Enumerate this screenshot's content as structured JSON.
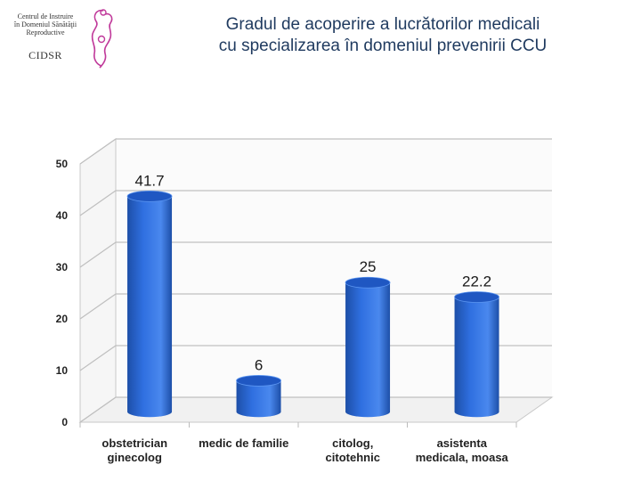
{
  "logo": {
    "lines": [
      "Centrul de Instruire",
      "în Domeniul Sănătăţii",
      "Reproductive"
    ],
    "abbr": "CIDSR"
  },
  "title_lines": [
    "Gradul de acoperire a lucrătorilor medicali",
    "cu specializarea în domeniul prevenirii CCU"
  ],
  "colors": {
    "bar": "#2f6fe0",
    "bar_top": "#1f57c2",
    "bar_dark": "#1d4fa8",
    "title": "#1f3a5f",
    "grid": "#bfbfbf"
  },
  "chart_data": {
    "type": "bar",
    "title": "Gradul de acoperire a lucrătorilor medicali cu specializarea în domeniul prevenirii CCU",
    "categories": [
      [
        "obstetrician",
        "ginecolog"
      ],
      [
        "medic de familie"
      ],
      [
        "citolog,",
        "citotehnic"
      ],
      [
        "asistenta",
        "medicala, moasa"
      ]
    ],
    "values": [
      41.7,
      6,
      25,
      22.2
    ],
    "value_labels": [
      "41.7",
      "6",
      "25",
      "22.2"
    ],
    "yticks": [
      0,
      10,
      20,
      30,
      40,
      50
    ],
    "ylim": [
      0,
      50
    ],
    "grid": true,
    "style": "3d-cylinder"
  }
}
